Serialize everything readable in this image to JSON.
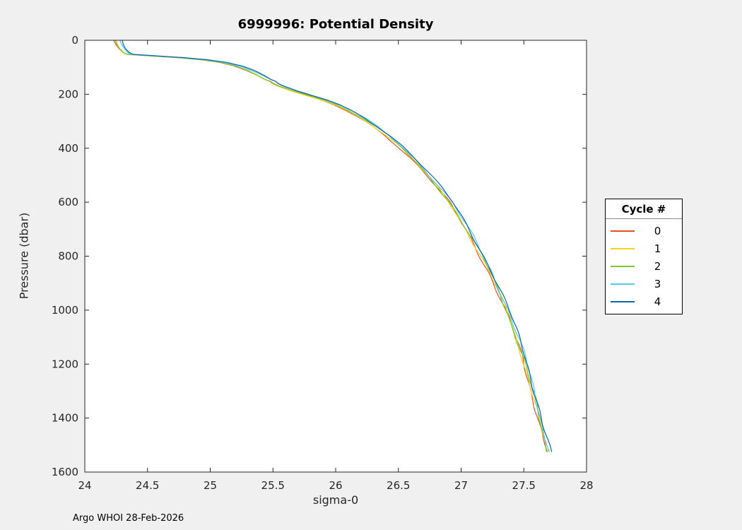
{
  "figure": {
    "title": "6999996: Potential Density",
    "footer": "Argo WHOI 28-Feb-2026",
    "background": "#f0f0f0",
    "plot_background": "#ffffff",
    "axes_color": "#262626"
  },
  "legend": {
    "title": "Cycle #",
    "position": "right-outside"
  },
  "chart_data": {
    "type": "line",
    "title": "6999996: Potential Density",
    "xlabel": "sigma-0",
    "ylabel": "Pressure (dbar)",
    "xlim": [
      24,
      28
    ],
    "ylim": [
      0,
      1600
    ],
    "y_inverted": true,
    "grid": false,
    "box": true,
    "xticks": [
      24,
      24.5,
      25,
      25.5,
      26,
      26.5,
      27,
      27.5,
      28
    ],
    "yticks": [
      0,
      200,
      400,
      600,
      800,
      1000,
      1200,
      1400,
      1600
    ],
    "legend_title": "Cycle #",
    "legend_position": "right-outside",
    "profile_note": "shared sigma-0 vs pressure profile; each cycle is this profile with a small sigma offset",
    "profile": [
      [
        24.27,
        0
      ],
      [
        24.28,
        15
      ],
      [
        24.3,
        30
      ],
      [
        24.33,
        45
      ],
      [
        24.36,
        52
      ],
      [
        24.55,
        58
      ],
      [
        24.75,
        64
      ],
      [
        24.95,
        72
      ],
      [
        25.1,
        82
      ],
      [
        25.22,
        95
      ],
      [
        25.32,
        112
      ],
      [
        25.4,
        130
      ],
      [
        25.46,
        145
      ],
      [
        25.5,
        152
      ],
      [
        25.52,
        160
      ],
      [
        25.58,
        172
      ],
      [
        25.68,
        188
      ],
      [
        25.8,
        205
      ],
      [
        25.92,
        222
      ],
      [
        26.02,
        240
      ],
      [
        26.12,
        262
      ],
      [
        26.22,
        288
      ],
      [
        26.32,
        318
      ],
      [
        26.42,
        352
      ],
      [
        26.52,
        392
      ],
      [
        26.62,
        437
      ],
      [
        26.72,
        487
      ],
      [
        26.82,
        542
      ],
      [
        26.92,
        600
      ],
      [
        27.0,
        660
      ],
      [
        27.08,
        722
      ],
      [
        27.16,
        790
      ],
      [
        27.24,
        860
      ],
      [
        27.31,
        935
      ],
      [
        27.38,
        1010
      ],
      [
        27.44,
        1090
      ],
      [
        27.5,
        1170
      ],
      [
        27.55,
        1255
      ],
      [
        27.6,
        1340
      ],
      [
        27.64,
        1420
      ],
      [
        27.68,
        1490
      ],
      [
        27.7,
        1525
      ]
    ],
    "series": [
      {
        "name": "0",
        "color": "#e8501e",
        "sigma_offset": -0.04
      },
      {
        "name": "1",
        "color": "#f2d21a",
        "sigma_offset": -0.03
      },
      {
        "name": "2",
        "color": "#7dc62e",
        "sigma_offset": -0.018
      },
      {
        "name": "3",
        "color": "#4fcbe9",
        "sigma_offset": 0.014
      },
      {
        "name": "4",
        "color": "#0f62ab",
        "sigma_offset": 0.024
      }
    ]
  }
}
